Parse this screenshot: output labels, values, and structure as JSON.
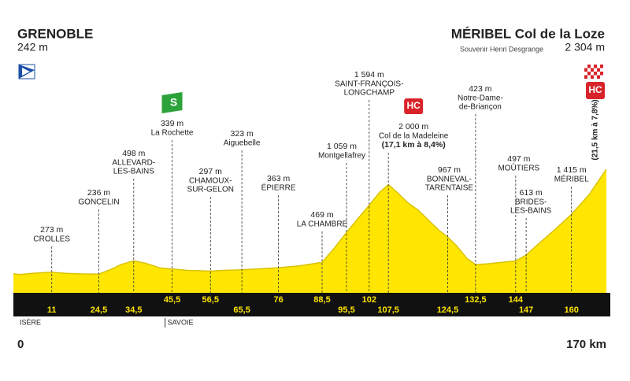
{
  "chart_data": {
    "type": "profile",
    "xlim": [
      0,
      170
    ],
    "ylim": [
      0,
      2500
    ],
    "start": {
      "name": "GRENOBLE",
      "altitude": {
        "value": 242,
        "label": "242 m"
      },
      "km": {
        "value": 0,
        "label": "0"
      }
    },
    "finish": {
      "name": "MÉRIBEL Col de la Loze",
      "subtitle": "Souvenir Henri Desgrange",
      "altitude": {
        "value": 2304,
        "label": "2 304 m"
      },
      "km": {
        "value": 170,
        "label": "170 km"
      },
      "category": "HC",
      "climb": "(21,5 km à 7,8%)"
    },
    "regions": [
      {
        "name": "ISÈRE",
        "km": 0
      },
      {
        "name": "SAVOIE",
        "km": 43.5
      }
    ],
    "waypoints": [
      {
        "name": [
          "CROLLES"
        ],
        "altitude": {
          "value": 273,
          "label": "273 m"
        },
        "km": {
          "value": 11,
          "label": "11"
        }
      },
      {
        "name": [
          "GONCELIN"
        ],
        "altitude": {
          "value": 236,
          "label": "236 m"
        },
        "km": {
          "value": 24.5,
          "label": "24,5"
        }
      },
      {
        "name": [
          "ALLEVARD-",
          "LES-BAINS"
        ],
        "altitude": {
          "value": 498,
          "label": "498 m"
        },
        "km": {
          "value": 34.5,
          "label": "34,5"
        }
      },
      {
        "name": [
          "La Rochette"
        ],
        "altitude": {
          "value": 339,
          "label": "339 m"
        },
        "km": {
          "value": 45.5,
          "label": "45,5"
        },
        "category": "S"
      },
      {
        "name": [
          "CHAMOUX-",
          "SUR-GELON"
        ],
        "altitude": {
          "value": 297,
          "label": "297 m"
        },
        "km": {
          "value": 56.5,
          "label": "56,5"
        }
      },
      {
        "name": [
          "Aiguebelle"
        ],
        "altitude": {
          "value": 323,
          "label": "323 m"
        },
        "km": {
          "value": 65.5,
          "label": "65,5"
        }
      },
      {
        "name": [
          "ÉPIERRE"
        ],
        "altitude": {
          "value": 363,
          "label": "363 m"
        },
        "km": {
          "value": 76,
          "label": "76"
        }
      },
      {
        "name": [
          "LA CHAMBRE"
        ],
        "altitude": {
          "value": 469,
          "label": "469 m"
        },
        "km": {
          "value": 88.5,
          "label": "88,5"
        }
      },
      {
        "name": [
          "Montgellafrey"
        ],
        "altitude": {
          "value": 1059,
          "label": "1 059 m"
        },
        "km": {
          "value": 95.5,
          "label": "95,5"
        }
      },
      {
        "name": [
          "SAINT-FRANÇOIS-",
          "LONGCHAMP"
        ],
        "altitude": {
          "value": 1594,
          "label": "1 594 m"
        },
        "km": {
          "value": 102,
          "label": "102"
        }
      },
      {
        "name": [
          "Col de la Madeleine"
        ],
        "altitude": {
          "value": 2000,
          "label": "2 000 m"
        },
        "km": {
          "value": 107.5,
          "label": "107,5"
        },
        "category": "HC",
        "climb": "(17,1 km à 8,4%)"
      },
      {
        "name": [
          "BONNEVAL-",
          "TARENTAISE"
        ],
        "altitude": {
          "value": 967,
          "label": "967 m"
        },
        "km": {
          "value": 124.5,
          "label": "124,5"
        }
      },
      {
        "name": [
          "Notre-Dame-",
          "de-Briançon"
        ],
        "altitude": {
          "value": 423,
          "label": "423 m"
        },
        "km": {
          "value": 132.5,
          "label": "132,5"
        }
      },
      {
        "name": [
          "MOÛTIERS"
        ],
        "altitude": {
          "value": 497,
          "label": "497 m"
        },
        "km": {
          "value": 144,
          "label": "144"
        }
      },
      {
        "name": [
          "BRIDES-",
          "LES-BAINS"
        ],
        "altitude": {
          "value": 613,
          "label": "613 m"
        },
        "km": {
          "value": 147,
          "label": "147"
        }
      },
      {
        "name": [
          "MÉRIBEL"
        ],
        "altitude": {
          "value": 1415,
          "label": "1 415 m"
        },
        "km": {
          "value": 160,
          "label": "160"
        }
      }
    ],
    "profile": {
      "km": [
        0,
        2,
        5,
        9,
        11,
        15,
        20,
        24.5,
        28,
        31,
        34.5,
        38,
        42,
        45.5,
        50,
        56.5,
        60,
        65.5,
        70,
        76,
        82,
        88.5,
        92,
        95.5,
        99,
        102,
        105,
        107.5,
        110,
        113,
        116,
        119,
        122,
        124.5,
        127,
        130,
        132.5,
        136,
        140,
        144,
        147,
        150,
        155,
        160,
        165,
        170
      ],
      "altitude": [
        242,
        230,
        250,
        268,
        273,
        252,
        240,
        236,
        330,
        430,
        498,
        450,
        360,
        339,
        310,
        297,
        310,
        323,
        340,
        363,
        400,
        469,
        750,
        1059,
        1350,
        1594,
        1850,
        2000,
        1850,
        1650,
        1500,
        1300,
        1100,
        967,
        800,
        550,
        423,
        440,
        470,
        497,
        613,
        800,
        1100,
        1415,
        1800,
        2304
      ]
    }
  }
}
